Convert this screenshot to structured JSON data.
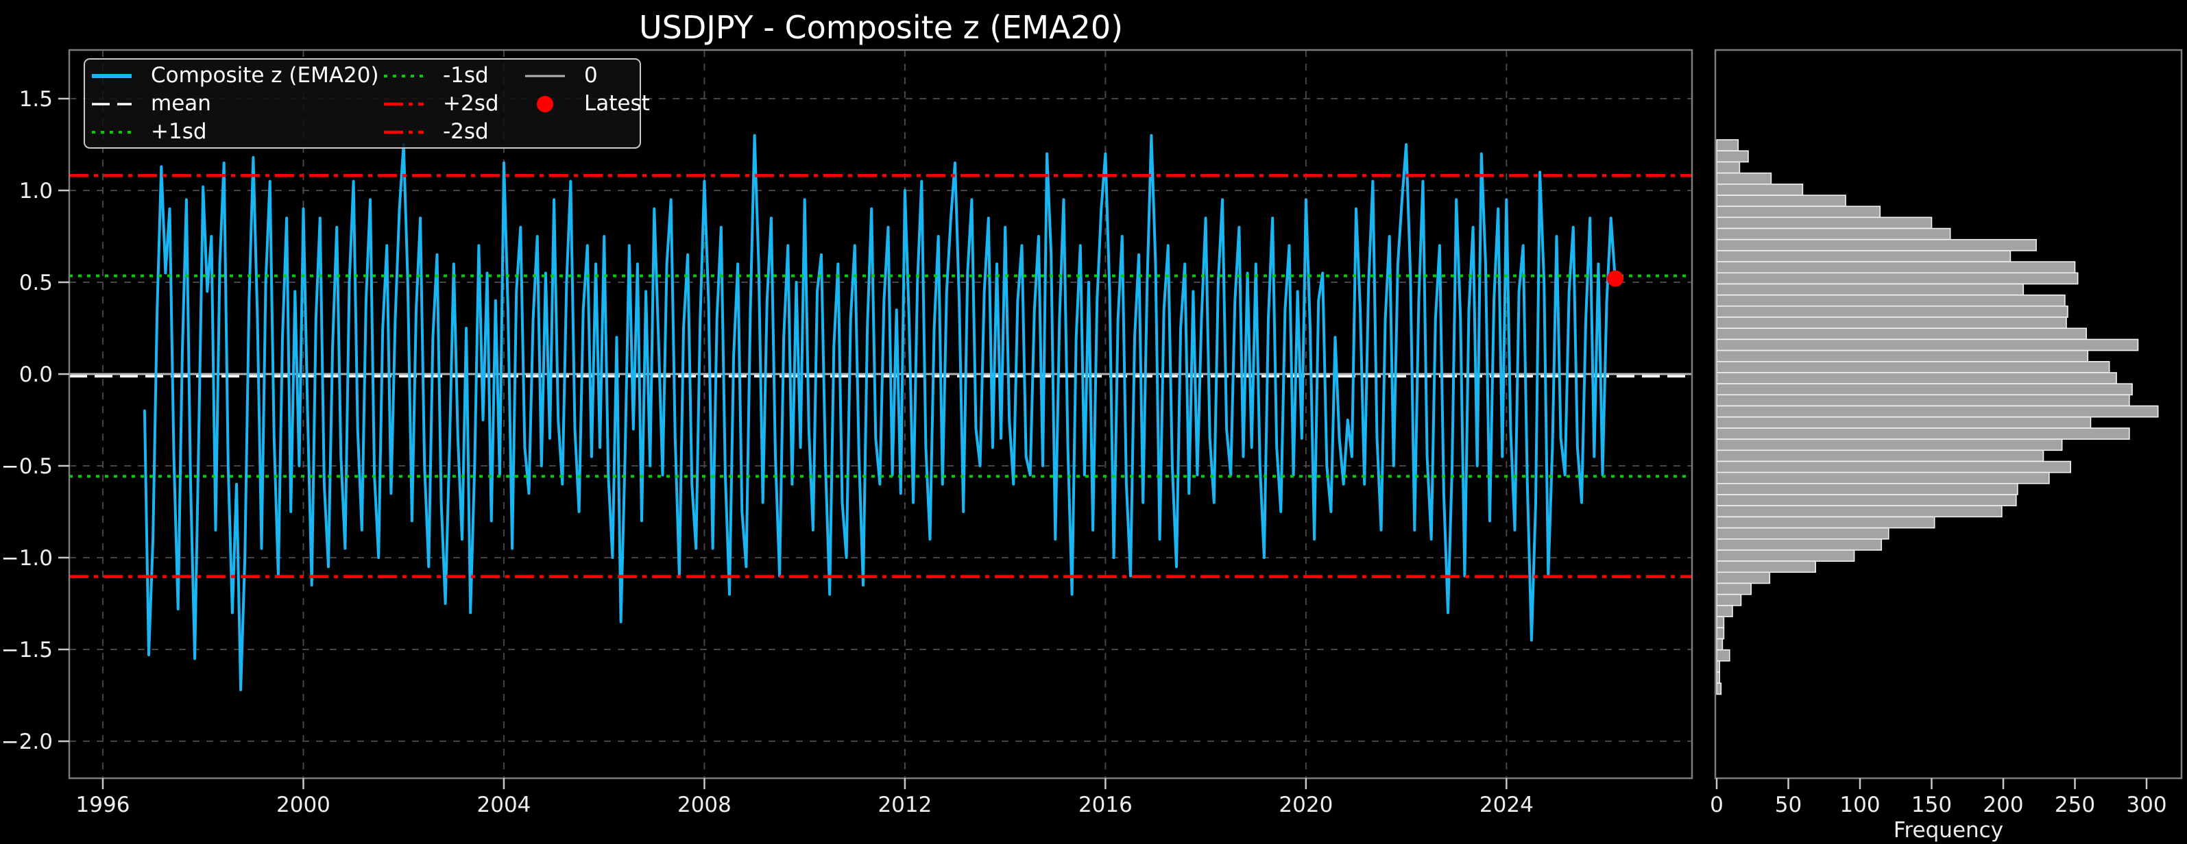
{
  "title": "USDJPY - Composite z (EMA20)",
  "colors": {
    "background": "#000000",
    "series": "#1ab6f3",
    "mean": "#ffffff",
    "sd1": "#00cf00",
    "sd2": "#ff0000",
    "zero": "#b3b3b3",
    "latest": "#ff0000",
    "grid": "#4d4d4d",
    "spine": "#7d7d7d",
    "tick": "#c9c9c9",
    "hist_bar": "#a3a3a3",
    "hist_bar_edge": "#f0f0f0"
  },
  "legend": {
    "columns": [
      [
        {
          "label": "Composite z (EMA20)",
          "style": "series"
        },
        {
          "label": "mean",
          "style": "mean"
        },
        {
          "label": "+1sd",
          "style": "sd1"
        }
      ],
      [
        {
          "label": "-1sd",
          "style": "sd1"
        },
        {
          "label": "+2sd",
          "style": "sd2"
        },
        {
          "label": "-2sd",
          "style": "sd2"
        }
      ],
      [
        {
          "label": "0",
          "style": "zero"
        },
        {
          "label": "Latest",
          "style": "latest"
        }
      ]
    ]
  },
  "chart_data": [
    {
      "type": "line",
      "title": "USDJPY - Composite z (EMA20)",
      "xlabel": "",
      "ylabel": "",
      "grid": true,
      "legend_position": "upper left",
      "xlim": [
        1995.36,
        2027.7
      ],
      "ylim": [
        -2.2,
        1.77
      ],
      "x_ticks": [
        1996,
        2000,
        2004,
        2008,
        2012,
        2016,
        2020,
        2024
      ],
      "x_tick_labels": [
        "1996",
        "2000",
        "2004",
        "2008",
        "2012",
        "2016",
        "2020",
        "2024"
      ],
      "y_ticks": [
        1.5,
        1.0,
        0.5,
        0.0,
        -0.5,
        -1.0,
        -1.5,
        -2.0
      ],
      "y_tick_labels": [
        "1.5",
        "1.0",
        "0.5",
        "0.0",
        "−0.5",
        "−1.0",
        "−1.5",
        "−2.0"
      ],
      "ref_lines": [
        {
          "name": "0",
          "value": 0.0,
          "style": "zero"
        },
        {
          "name": "mean",
          "value": -0.012,
          "style": "mean"
        },
        {
          "name": "+1sd",
          "value": 0.535,
          "style": "sd1"
        },
        {
          "name": "-1sd",
          "value": -0.557,
          "style": "sd1"
        },
        {
          "name": "+2sd",
          "value": 1.081,
          "style": "sd2"
        },
        {
          "name": "-2sd",
          "value": -1.103,
          "style": "sd2"
        }
      ],
      "latest": {
        "x": 2026.17,
        "y": 0.52,
        "label": "Latest"
      },
      "series": [
        {
          "name": "Composite z (EMA20)",
          "x_start": 1996.8333,
          "x_step": 0.083333,
          "values": [
            -0.2,
            -1.53,
            -0.9,
            0.35,
            1.13,
            0.55,
            0.9,
            -0.45,
            -1.28,
            0.1,
            0.95,
            -0.6,
            -1.55,
            -0.3,
            1.02,
            0.45,
            0.75,
            -0.85,
            0.6,
            1.15,
            -0.5,
            -1.3,
            -0.6,
            -1.72,
            -1.0,
            0.4,
            1.18,
            0.3,
            -0.95,
            0.5,
            1.05,
            -0.35,
            -1.1,
            0.2,
            0.85,
            -0.75,
            0.45,
            -0.5,
            0.9,
            -0.2,
            -1.15,
            0.3,
            0.85,
            -0.6,
            -1.05,
            0.15,
            0.8,
            -0.45,
            -0.95,
            0.5,
            1.05,
            -0.3,
            -0.85,
            0.4,
            0.95,
            -0.55,
            -1.0,
            0.25,
            0.7,
            -0.65,
            0.3,
            0.9,
            1.25,
            0.5,
            -0.8,
            0.35,
            0.85,
            -0.5,
            -1.05,
            0.2,
            0.65,
            -0.7,
            -1.25,
            -0.4,
            0.6,
            -0.35,
            -0.9,
            0.25,
            -1.3,
            -0.5,
            0.7,
            -0.25,
            0.55,
            -0.8,
            0.4,
            -0.55,
            1.15,
            0.35,
            -0.95,
            0.45,
            0.8,
            -0.4,
            -0.65,
            0.3,
            0.75,
            -0.5,
            0.55,
            -0.35,
            0.95,
            -0.25,
            -0.6,
            0.5,
            1.05,
            -0.3,
            -0.75,
            0.35,
            0.7,
            -0.45,
            0.6,
            -0.4,
            0.75,
            -0.55,
            -1.0,
            0.2,
            -1.35,
            -0.45,
            0.7,
            -0.3,
            0.6,
            -0.8,
            0.45,
            -0.5,
            0.9,
            0.2,
            -0.55,
            0.6,
            0.95,
            -0.35,
            -1.1,
            0.25,
            0.65,
            -0.6,
            -0.95,
            0.3,
            1.05,
            0.4,
            -0.95,
            0.3,
            0.8,
            -0.55,
            -1.2,
            0.1,
            0.6,
            -0.75,
            -1.05,
            0.35,
            1.3,
            0.6,
            -0.7,
            0.4,
            0.85,
            -0.45,
            -1.1,
            0.2,
            0.7,
            -0.6,
            0.5,
            -0.4,
            0.95,
            -0.3,
            -0.85,
            0.45,
            0.65,
            -0.5,
            -1.2,
            0.15,
            0.6,
            -0.7,
            -1.0,
            0.3,
            0.7,
            -0.45,
            -1.15,
            0.25,
            0.9,
            -0.35,
            -0.6,
            0.4,
            0.8,
            -0.55,
            0.35,
            -0.65,
            1.0,
            0.3,
            -0.7,
            0.5,
            1.05,
            -0.4,
            -0.9,
            0.25,
            0.75,
            -0.6,
            0.45,
            0.85,
            1.15,
            0.4,
            -0.75,
            0.55,
            0.95,
            -0.3,
            -0.5,
            0.45,
            0.85,
            -0.4,
            0.6,
            -0.35,
            0.8,
            -0.25,
            -0.6,
            0.4,
            0.7,
            -0.45,
            -0.55,
            0.35,
            0.75,
            -0.5,
            1.2,
            0.65,
            -0.9,
            0.3,
            0.95,
            -0.4,
            -1.2,
            0.2,
            0.7,
            -0.55,
            0.5,
            -0.85,
            0.4,
            0.9,
            1.2,
            0.45,
            -1.0,
            0.3,
            0.75,
            -0.6,
            -1.1,
            0.2,
            0.65,
            -0.7,
            0.5,
            1.3,
            0.6,
            -0.9,
            0.35,
            0.7,
            -0.5,
            -1.05,
            0.25,
            0.6,
            -0.65,
            0.45,
            -0.55,
            0.3,
            0.85,
            -0.35,
            -0.7,
            0.5,
            0.95,
            -0.3,
            -0.55,
            0.4,
            0.8,
            -0.45,
            0.55,
            -0.4,
            0.6,
            -0.5,
            -1.0,
            0.3,
            0.85,
            -0.4,
            -0.75,
            0.35,
            0.7,
            -0.55,
            0.45,
            -0.35,
            0.95,
            0.25,
            -0.9,
            0.4,
            0.55,
            -0.5,
            -0.75,
            0.2,
            -0.35,
            -0.6,
            -0.25,
            -0.45,
            0.9,
            0.35,
            -0.6,
            0.5,
            1.05,
            -0.35,
            -0.85,
            0.3,
            0.75,
            -0.5,
            0.6,
            0.95,
            1.25,
            0.55,
            -0.85,
            0.4,
            1.05,
            -0.45,
            -0.9,
            0.3,
            0.7,
            -0.65,
            -1.3,
            -0.5,
            0.95,
            0.3,
            -1.1,
            0.35,
            0.8,
            -0.5,
            1.2,
            0.6,
            -0.8,
            0.4,
            0.9,
            -0.45,
            0.95,
            -0.3,
            -0.85,
            0.45,
            0.7,
            -0.6,
            -1.45,
            -0.7,
            1.1,
            0.5,
            -1.1,
            -0.4,
            0.75,
            -0.35,
            -0.55,
            0.45,
            0.8,
            -0.4,
            -0.7,
            0.3,
            0.85,
            -0.45,
            0.6,
            -0.55,
            0.4,
            0.85,
            0.52
          ]
        }
      ]
    },
    {
      "type": "bar",
      "orientation": "horizontal",
      "xlabel": "Frequency",
      "xlim": [
        0,
        324
      ],
      "x_ticks": [
        0,
        50,
        100,
        150,
        200,
        250,
        300
      ],
      "x_tick_labels": [
        "0",
        "50",
        "100",
        "150",
        "200",
        "250",
        "300"
      ],
      "bins": {
        "z_top_first": 1.276,
        "z_step": 0.0604
      },
      "values": [
        15,
        22,
        16,
        38,
        60,
        90,
        114,
        150,
        163,
        223,
        205,
        250,
        252,
        214,
        243,
        245,
        244,
        258,
        294,
        259,
        274,
        279,
        290,
        288,
        308,
        261,
        288,
        241,
        228,
        247,
        232,
        210,
        209,
        199,
        152,
        120,
        115,
        96,
        69,
        37,
        24,
        17,
        11,
        5,
        5,
        4,
        9,
        2,
        2,
        3
      ]
    }
  ]
}
